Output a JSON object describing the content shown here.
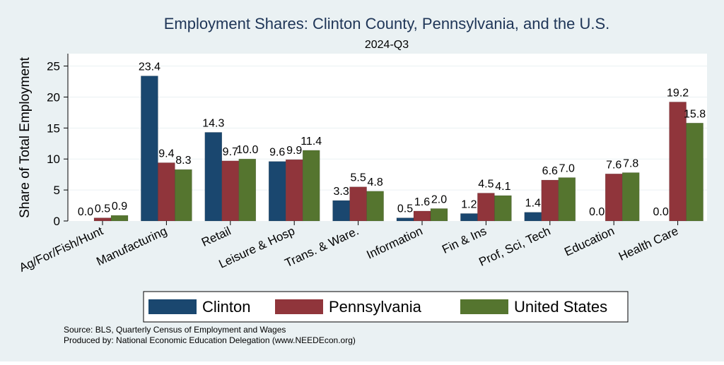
{
  "chart_data": {
    "type": "bar",
    "title": "Employment Shares: Clinton County, Pennsylvania, and the U.S.",
    "subtitle": "2024-Q3",
    "xlabel": "",
    "ylabel": "Share of Total Employment",
    "ylim": [
      0,
      27
    ],
    "yticks": [
      0,
      5,
      10,
      15,
      20,
      25
    ],
    "grid": true,
    "legend_position": "bottom",
    "categories": [
      "Ag/For/Fish/Hunt",
      "Manufacturing",
      "Retail",
      "Leisure & Hosp",
      "Trans. & Ware.",
      "Information",
      "Fin & Ins",
      "Prof, Sci, Tech",
      "Education",
      "Health Care"
    ],
    "series": [
      {
        "name": "Clinton",
        "color": "#1a476f",
        "values": [
          0.0,
          23.4,
          14.3,
          9.6,
          3.3,
          0.5,
          1.2,
          1.4,
          0.0,
          0.0
        ]
      },
      {
        "name": "Pennsylvania",
        "color": "#90353b",
        "values": [
          0.5,
          9.4,
          9.7,
          9.9,
          5.5,
          1.6,
          4.5,
          6.6,
          7.6,
          19.2
        ]
      },
      {
        "name": "United States",
        "color": "#55752f",
        "values": [
          0.9,
          8.3,
          10.0,
          11.4,
          4.8,
          2.0,
          4.1,
          7.0,
          7.8,
          15.8
        ]
      }
    ],
    "notes": [
      "Source: BLS, Quarterly Census of Employment and Wages",
      "Produced by: National Economic Education Delegation (www.NEEDEcon.org)"
    ]
  }
}
